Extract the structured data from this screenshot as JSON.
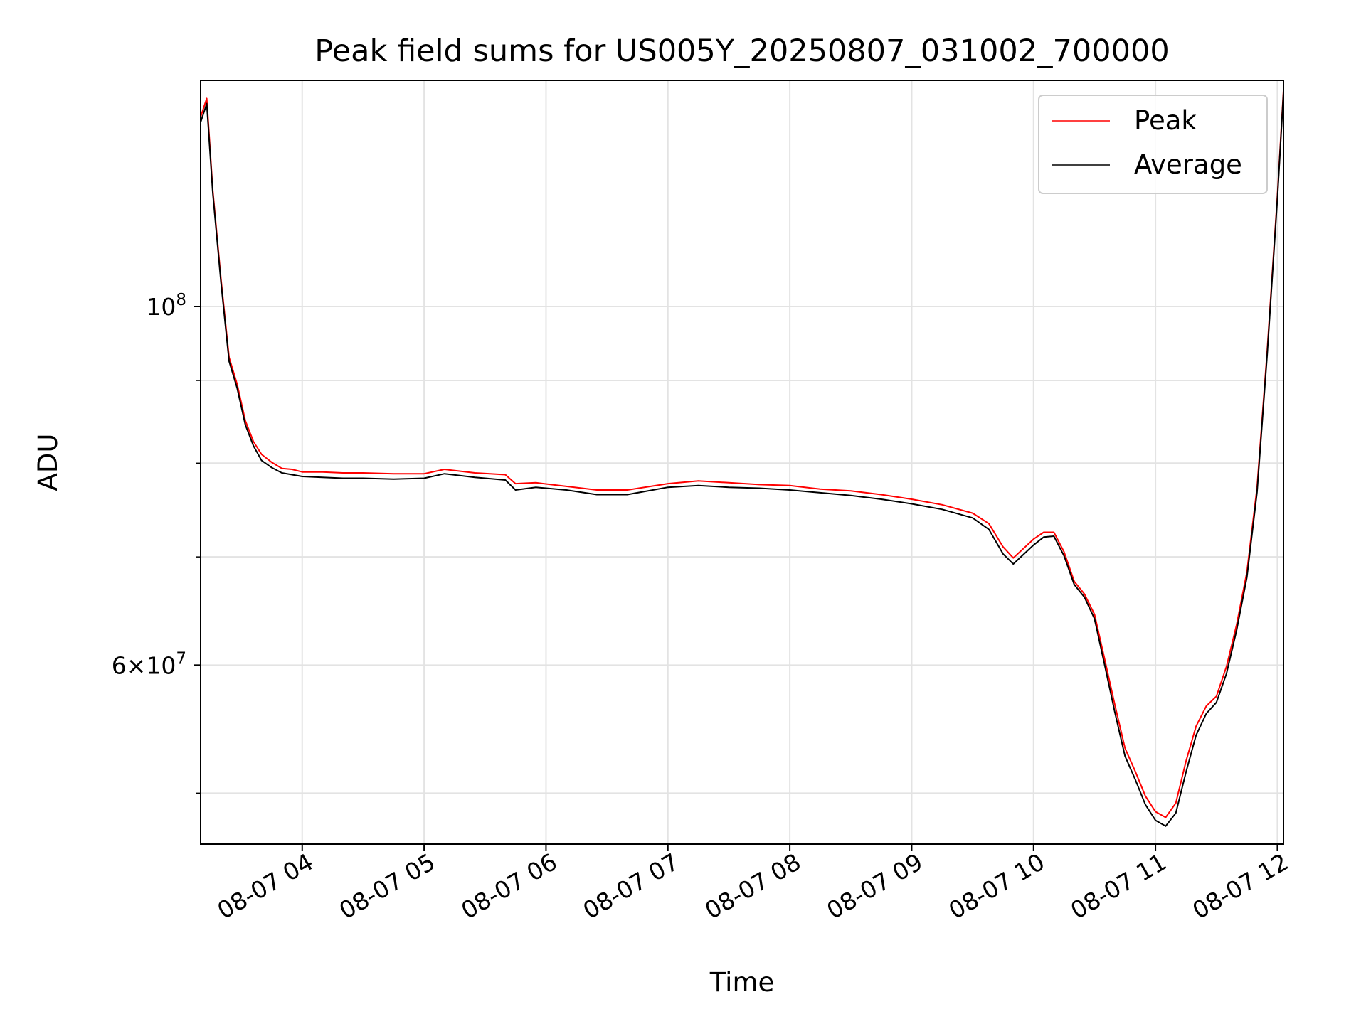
{
  "chart_data": {
    "type": "line",
    "title": "Peak field sums for US005Y_20250807_031002_700000",
    "xlabel": "Time",
    "ylabel": "ADU",
    "y_scale": "log",
    "grid": true,
    "legend_position": "top-right",
    "x_range": [
      "08-07 03:10",
      "08-07 12:03"
    ],
    "ylim": [
      46500000,
      138000000
    ],
    "x_tick_labels": [
      "08-07 04",
      "08-07 05",
      "08-07 06",
      "08-07 07",
      "08-07 08",
      "08-07 09",
      "08-07 10",
      "08-07 11",
      "08-07 12"
    ],
    "x_tick_times": [
      "08-07 04:00",
      "08-07 05:00",
      "08-07 06:00",
      "08-07 07:00",
      "08-07 08:00",
      "08-07 09:00",
      "08-07 10:00",
      "08-07 11:00",
      "08-07 12:00"
    ],
    "y_major_ticks": [
      {
        "value": 100000000,
        "base": "10",
        "exp": "8"
      },
      {
        "value": 60000000,
        "mant": "6",
        "base": "10",
        "exp": "7"
      }
    ],
    "y_minor_ticks": [
      50000000,
      70000000,
      80000000,
      90000000
    ],
    "x": [
      "08-07 03:10",
      "08-07 03:13",
      "08-07 03:16",
      "08-07 03:20",
      "08-07 03:24",
      "08-07 03:28",
      "08-07 03:32",
      "08-07 03:36",
      "08-07 03:40",
      "08-07 03:45",
      "08-07 03:50",
      "08-07 03:55",
      "08-07 04:00",
      "08-07 04:10",
      "08-07 04:20",
      "08-07 04:30",
      "08-07 04:45",
      "08-07 05:00",
      "08-07 05:10",
      "08-07 05:25",
      "08-07 05:40",
      "08-07 05:45",
      "08-07 05:55",
      "08-07 06:10",
      "08-07 06:25",
      "08-07 06:40",
      "08-07 07:00",
      "08-07 07:15",
      "08-07 07:30",
      "08-07 07:45",
      "08-07 08:00",
      "08-07 08:15",
      "08-07 08:30",
      "08-07 08:45",
      "08-07 09:00",
      "08-07 09:15",
      "08-07 09:30",
      "08-07 09:38",
      "08-07 09:45",
      "08-07 09:50",
      "08-07 10:00",
      "08-07 10:05",
      "08-07 10:10",
      "08-07 10:15",
      "08-07 10:20",
      "08-07 10:25",
      "08-07 10:30",
      "08-07 10:35",
      "08-07 10:40",
      "08-07 10:45",
      "08-07 10:50",
      "08-07 10:55",
      "08-07 11:00",
      "08-07 11:05",
      "08-07 11:10",
      "08-07 11:15",
      "08-07 11:20",
      "08-07 11:25",
      "08-07 11:30",
      "08-07 11:35",
      "08-07 11:40",
      "08-07 11:45",
      "08-07 11:50",
      "08-07 11:55",
      "08-07 12:00",
      "08-07 12:03"
    ],
    "series": [
      {
        "name": "Peak",
        "color": "#ff0000",
        "values": [
          131000000,
          134500000,
          118000000,
          104000000,
          93000000,
          89500000,
          85000000,
          82500000,
          81000000,
          80100000,
          79400000,
          79300000,
          79000000,
          79000000,
          78900000,
          78900000,
          78800000,
          78800000,
          79300000,
          78900000,
          78700000,
          77700000,
          77800000,
          77400000,
          77000000,
          77000000,
          77700000,
          78000000,
          77800000,
          77600000,
          77500000,
          77100000,
          76900000,
          76500000,
          76000000,
          75400000,
          74500000,
          73400000,
          71000000,
          69900000,
          71800000,
          72500000,
          72500000,
          70500000,
          67600000,
          66400000,
          64500000,
          60500000,
          56700000,
          53300000,
          51600000,
          49800000,
          48700000,
          48300000,
          49300000,
          52300000,
          55000000,
          56600000,
          57400000,
          59900000,
          63600000,
          68500000,
          77300000,
          94000000,
          117000000,
          136000000
        ]
      },
      {
        "name": "Average",
        "color": "#000000",
        "values": [
          130000000,
          133500000,
          117500000,
          103500000,
          92500000,
          89000000,
          84500000,
          82000000,
          80300000,
          79500000,
          78900000,
          78700000,
          78500000,
          78400000,
          78300000,
          78300000,
          78200000,
          78300000,
          78800000,
          78400000,
          78100000,
          77000000,
          77300000,
          77000000,
          76500000,
          76500000,
          77300000,
          77500000,
          77300000,
          77200000,
          77000000,
          76700000,
          76400000,
          76000000,
          75500000,
          74900000,
          74000000,
          72800000,
          70300000,
          69300000,
          71200000,
          72000000,
          72100000,
          70100000,
          67300000,
          66100000,
          64100000,
          60000000,
          56100000,
          52700000,
          51000000,
          49200000,
          48100000,
          47700000,
          48600000,
          51500000,
          54300000,
          56000000,
          56900000,
          59300000,
          63100000,
          68000000,
          76800000,
          93500000,
          116500000,
          135500000
        ]
      }
    ]
  }
}
